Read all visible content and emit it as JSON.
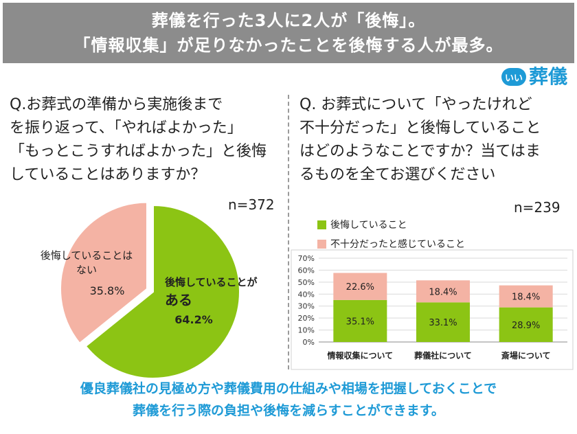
{
  "header": {
    "line1": "葬儀を行った3人に2人が「後悔」。",
    "line2": "「情報収集」が足りなかったことを後悔する人が最多。"
  },
  "brand": {
    "badge": "いい",
    "name": "葬儀"
  },
  "left": {
    "question_lines": [
      "Q.お葬式の準備から実施後まで",
      "を振り返って、「やればよかった」",
      "「もっとこうすればよかった」と後悔",
      "していることはありますか？"
    ],
    "n": "n=372"
  },
  "right": {
    "question_lines": [
      "Q. お葬式について「やったけれど",
      "不十分だった」と後悔していること",
      "はどのようなことですか？当てはま",
      "るものを全てお選びください"
    ],
    "n": "n=239"
  },
  "colors": {
    "green": "#8cc414",
    "pink": "#f4b3a4",
    "blue": "#1e9ad6",
    "banner": "#8c8c8c"
  },
  "chart_data": [
    {
      "type": "pie",
      "slices": [
        {
          "name": "後悔していることがある",
          "label_lines": [
            "後悔していることが",
            "ある"
          ],
          "value": 64.2,
          "value_label": "64.2%",
          "color": "#8cc414"
        },
        {
          "name": "後悔していることはない",
          "label_lines": [
            "後悔していることは",
            "ない"
          ],
          "value": 35.8,
          "value_label": "35.8%",
          "color": "#f4b3a4"
        }
      ]
    },
    {
      "type": "bar",
      "stacked": true,
      "categories": [
        "情報収集について",
        "葬儀社について",
        "斎場について"
      ],
      "series": [
        {
          "name": "後悔していること",
          "values": [
            35.1,
            33.1,
            28.9
          ],
          "labels": [
            "35.1%",
            "33.1%",
            "28.9%"
          ],
          "color": "#8cc414"
        },
        {
          "name": "不十分だったと感じていること",
          "values": [
            22.6,
            18.4,
            18.4
          ],
          "labels": [
            "22.6%",
            "18.4%",
            "18.4%"
          ],
          "color": "#f4b3a4"
        }
      ],
      "ylim": [
        0,
        70
      ],
      "y_ticks": [
        0,
        10,
        20,
        30,
        40,
        50,
        60,
        70
      ],
      "y_tick_labels": [
        "0%",
        "10%",
        "20%",
        "30%",
        "40%",
        "50%",
        "60%",
        "70%"
      ],
      "grid": true,
      "legend_position": "top-left"
    }
  ],
  "footer": {
    "line1": "優良葬儀社の見極め方や葬儀費用の仕組みや相場を把握しておくことで",
    "line2": "葬儀を行う際の負担や後悔を減らすことができます。"
  }
}
